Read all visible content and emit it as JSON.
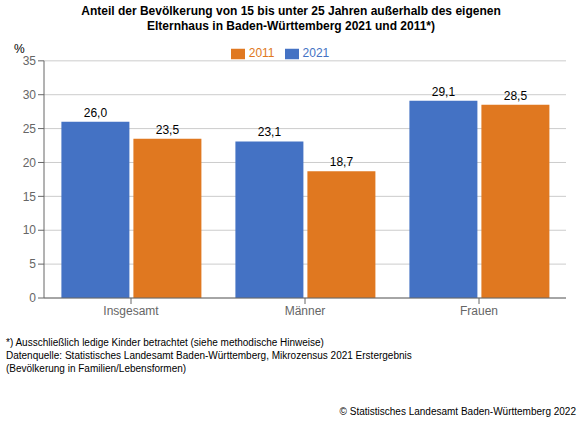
{
  "chart_data": {
    "type": "bar",
    "title": "Anteil der Bevölkerung von 15 bis unter 25 Jahren außerhalb des eigenen\nElternhaus in Baden-Württemberg 2021 und 2011*)",
    "y_label": "%",
    "categories": [
      "Insgesamt",
      "Männer",
      "Frauen"
    ],
    "series": [
      {
        "name": "2021",
        "color": "#4472C4",
        "values": [
          26.0,
          23.1,
          29.1
        ],
        "value_labels": [
          "26,0",
          "23,1",
          "29,1"
        ]
      },
      {
        "name": "2011",
        "color": "#E07820",
        "values": [
          23.5,
          18.7,
          28.5
        ],
        "value_labels": [
          "23,5",
          "18,7",
          "28,5"
        ]
      }
    ],
    "ylim": [
      0,
      35
    ],
    "yticks": [
      0,
      5,
      10,
      15,
      20,
      25,
      30,
      35
    ],
    "grid": true,
    "legend": "top",
    "data_labels": true,
    "annotations": [
      "*) Ausschließlich ledige Kinder betrachtet (siehe methodische Hinweise)",
      "Datenquelle: Statistisches Landesamt Baden-Württemberg, Mikrozensus 2021 Erstergebnis",
      "(Bevölkerung in Familien/Lebensformen)",
      "© Statistisches Landesamt Baden-Württemberg 2022"
    ]
  }
}
